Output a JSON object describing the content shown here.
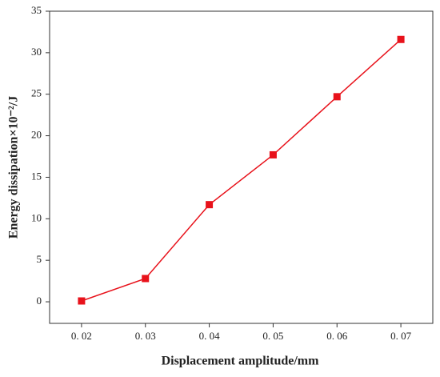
{
  "chart_data": {
    "type": "line",
    "x_label": "Displacement amplitude/mm",
    "y_label": "Energy dissipation×10⁻²/J",
    "x": [
      0.02,
      0.03,
      0.04,
      0.05,
      0.06,
      0.07
    ],
    "series": [
      {
        "name": "Energy dissipation",
        "color": "#e8121b",
        "values": [
          0.1,
          2.8,
          11.7,
          17.7,
          24.7,
          31.6
        ]
      }
    ],
    "xlim": [
      0.015,
      0.075
    ],
    "xticks": [
      {
        "value": 0.02,
        "label": "0. 02"
      },
      {
        "value": 0.03,
        "label": "0. 03"
      },
      {
        "value": 0.04,
        "label": "0. 04"
      },
      {
        "value": 0.05,
        "label": "0. 05"
      },
      {
        "value": 0.06,
        "label": "0. 06"
      },
      {
        "value": 0.07,
        "label": "0. 07"
      }
    ],
    "ylim": [
      -2.6,
      35
    ],
    "yticks": [
      0,
      5,
      10,
      15,
      20,
      25,
      30,
      35
    ],
    "grid": false
  }
}
